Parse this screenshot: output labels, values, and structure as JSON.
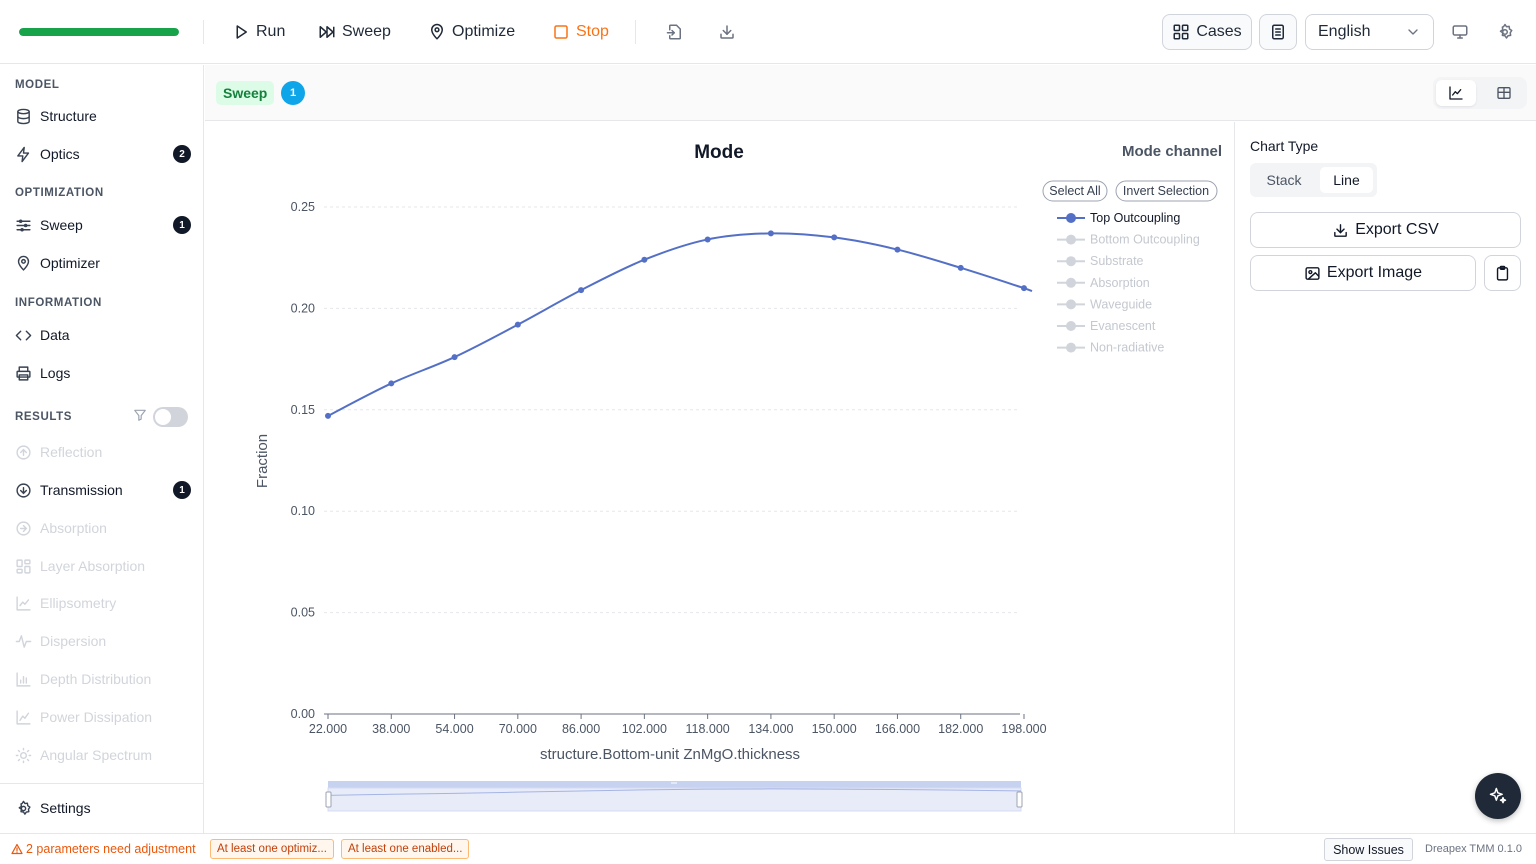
{
  "progress": {
    "value": 1.0,
    "color": "#16a34a"
  },
  "toolbar": {
    "run_label": "Run",
    "sweep_label": "Sweep",
    "optimize_label": "Optimize",
    "stop_label": "Stop",
    "cases_label": "Cases",
    "language": "English"
  },
  "sidebar": {
    "model_heading": "MODEL",
    "structure": "Structure",
    "optics": "Optics",
    "optics_badge": "2",
    "optimization_heading": "OPTIMIZATION",
    "sweep": "Sweep",
    "sweep_badge": "1",
    "optimizer": "Optimizer",
    "information_heading": "INFORMATION",
    "data": "Data",
    "logs": "Logs",
    "results_heading": "RESULTS",
    "reflection": "Reflection",
    "transmission": "Transmission",
    "transmission_badge": "1",
    "absorption": "Absorption",
    "layer_absorption": "Layer Absorption",
    "ellipsometry": "Ellipsometry",
    "dispersion": "Dispersion",
    "depth_distribution": "Depth Distribution",
    "power_dissipation": "Power Dissipation",
    "angular_spectrum": "Angular Spectrum",
    "settings": "Settings"
  },
  "subheader": {
    "tag": "Sweep",
    "count": "1"
  },
  "chart_panel": {
    "chart_type_label": "Chart Type",
    "stack_label": "Stack",
    "line_label": "Line",
    "export_csv": "Export CSV",
    "export_image": "Export Image"
  },
  "chart_data": {
    "type": "line",
    "title": "Mode",
    "legend_title": "Mode channel",
    "select_all": "Select All",
    "invert_selection": "Invert Selection",
    "xlabel": "structure.Bottom-unit ZnMgO.thickness",
    "ylabel": "Fraction",
    "ylim": [
      0,
      0.25
    ],
    "yticks": [
      "0.00",
      "0.05",
      "0.10",
      "0.15",
      "0.20",
      "0.25"
    ],
    "xtick_labels": [
      "22.000",
      "38.000",
      "54.000",
      "70.000",
      "86.000",
      "102.000",
      "118.000",
      "134.000",
      "150.000",
      "166.000",
      "182.000",
      "198.000"
    ],
    "grid": true,
    "legend_position": "right",
    "x": [
      22,
      38,
      54,
      70,
      86,
      102,
      118,
      134,
      150,
      166,
      182,
      198
    ],
    "series": [
      {
        "name": "Top Outcoupling",
        "active": true,
        "color": "#5470c6",
        "values": [
          0.147,
          0.163,
          0.176,
          0.192,
          0.209,
          0.224,
          0.234,
          0.237,
          0.235,
          0.229,
          0.22,
          0.21
        ]
      },
      {
        "name": "Bottom Outcoupling",
        "active": false
      },
      {
        "name": "Substrate",
        "active": false
      },
      {
        "name": "Absorption",
        "active": false
      },
      {
        "name": "Waveguide",
        "active": false
      },
      {
        "name": "Evanescent",
        "active": false
      },
      {
        "name": "Non-radiative",
        "active": false
      }
    ]
  },
  "status": {
    "warning": "2 parameters need adjustment",
    "chip1": "At least one optimiz...",
    "chip2": "At least one enabled...",
    "show_issues": "Show Issues",
    "version": "Dreapex TMM 0.1.0"
  },
  "colors": {
    "accent": "#16a34a",
    "stop": "#f97316",
    "series": "#5470c6"
  }
}
